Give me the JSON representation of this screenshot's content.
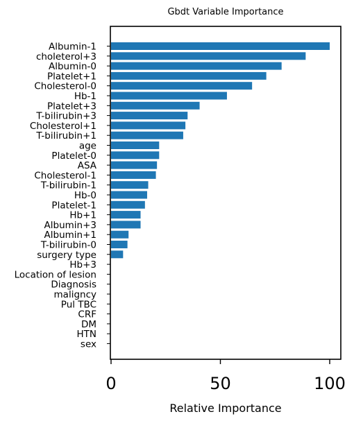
{
  "chart_data": {
    "type": "bar",
    "orientation": "horizontal",
    "title": "Gbdt Variable Importance",
    "xlabel": "Relative Importance",
    "ylabel": "",
    "xlim": [
      0,
      100
    ],
    "xticks": [
      "0",
      "50",
      "100"
    ],
    "grid": false,
    "legend": "none",
    "bar_color": "#1f77b4",
    "categories": [
      "Albumin-1",
      "choleterol+3",
      "Albumin-0",
      "Platelet+1",
      "Cholesterol-0",
      "Hb-1",
      "Platelet+3",
      "T-bilirubin+3",
      "Cholesterol+1",
      "T-bilirubin+1",
      "age",
      "Platelet-0",
      "ASA",
      "Cholesterol-1",
      "T-bilirubin-1",
      "Hb-0",
      "Platelet-1",
      "Hb+1",
      "Albumin+3",
      "Albumin+1",
      "T-bilirubin-0",
      "surgery type",
      "Hb+3",
      "Location of lesion",
      "Diagnosis",
      "maligncy",
      "Pul TBC",
      "CRF",
      "DM",
      "HTN",
      "sex"
    ],
    "values": [
      100,
      89,
      78,
      71,
      64.5,
      53,
      40.5,
      35,
      34,
      33,
      22,
      22,
      21,
      20.5,
      17,
      16.5,
      15.5,
      13.5,
      13.5,
      8,
      7.5,
      5.5,
      0,
      0,
      0,
      0,
      0,
      0,
      0,
      0,
      0
    ]
  }
}
